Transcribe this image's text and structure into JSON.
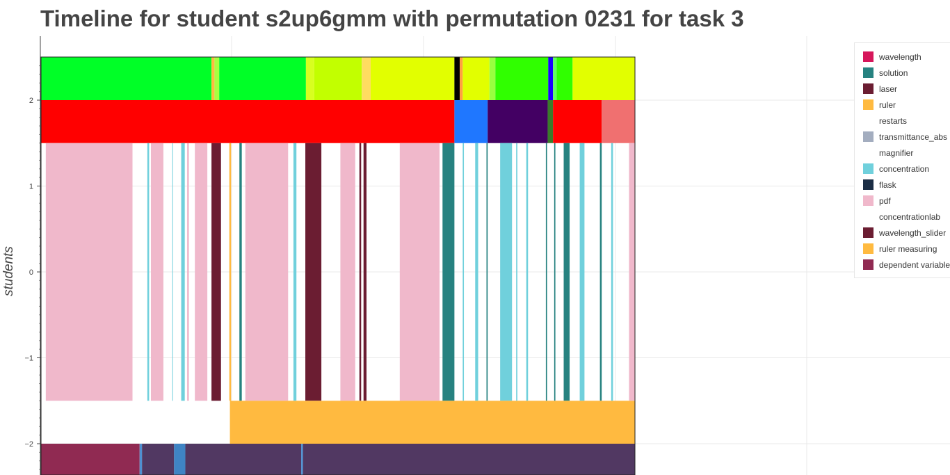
{
  "title": "Timeline for student s2up6gmm with permutation 0231 for task 3",
  "chart_data": {
    "type": "timeline",
    "title": "Timeline for student s2up6gmm with permutation 0231 for task 3",
    "ylabel": "students",
    "xlabel": "",
    "ylim": [
      -2.35,
      2.5
    ],
    "yticks": [
      -2,
      -1,
      0,
      1,
      2
    ],
    "ytick_labels": [
      "−2",
      "−1",
      "0",
      "1",
      "2"
    ],
    "xlim": [
      0,
      1000
    ],
    "grid": true,
    "legend_position": "top-right",
    "legend": [
      {
        "label": "wavelength",
        "color": "#d6175b"
      },
      {
        "label": "solution",
        "color": "#268280"
      },
      {
        "label": "laser",
        "color": "#6b1d32"
      },
      {
        "label": "ruler",
        "color": "#ffba40"
      },
      {
        "label": "restarts",
        "color": "#ffffff"
      },
      {
        "label": "transmittance_abs",
        "color": "#a3adbf"
      },
      {
        "label": "magnifier",
        "color": "#ffffff"
      },
      {
        "label": "concentration",
        "color": "#70d0dc"
      },
      {
        "label": "flask",
        "color": "#1b2d45"
      },
      {
        "label": "pdf",
        "color": "#f0b8cb"
      },
      {
        "label": "concentrationlab",
        "color": "#ffffff"
      },
      {
        "label": "wavelength_slider",
        "color": "#6b1d32"
      },
      {
        "label": "ruler measuring",
        "color": "#ffba40"
      },
      {
        "label": "dependent variable",
        "color": "#902a52"
      }
    ],
    "rows": [
      {
        "y0": 2,
        "y1": 2.5,
        "segments": [
          {
            "start": 0,
            "end": 287,
            "color": "#00ff27"
          },
          {
            "start": 287,
            "end": 292,
            "color": "#ffba40"
          },
          {
            "start": 292,
            "end": 300,
            "color": "#a8ff40"
          },
          {
            "start": 300,
            "end": 446,
            "color": "#00ff27"
          },
          {
            "start": 446,
            "end": 460,
            "color": "#d8ff20"
          },
          {
            "start": 460,
            "end": 540,
            "color": "#c2ff00"
          },
          {
            "start": 540,
            "end": 555,
            "color": "#ffdc60"
          },
          {
            "start": 555,
            "end": 696,
            "color": "#e2ff00"
          },
          {
            "start": 696,
            "end": 705,
            "color": "#000000"
          },
          {
            "start": 705,
            "end": 710,
            "color": "#ffa040"
          },
          {
            "start": 710,
            "end": 755,
            "color": "#e2ff00"
          },
          {
            "start": 755,
            "end": 765,
            "color": "#98ff40"
          },
          {
            "start": 765,
            "end": 854,
            "color": "#30ff00"
          },
          {
            "start": 854,
            "end": 862,
            "color": "#1a00ff"
          },
          {
            "start": 862,
            "end": 868,
            "color": "#60ff60"
          },
          {
            "start": 868,
            "end": 895,
            "color": "#30ff00"
          },
          {
            "start": 895,
            "end": 1000,
            "color": "#e2ff00"
          }
        ]
      },
      {
        "y0": 1.5,
        "y1": 2,
        "segments": [
          {
            "start": 0,
            "end": 696,
            "color": "#ff0000"
          },
          {
            "start": 696,
            "end": 752,
            "color": "#1f77ff"
          },
          {
            "start": 752,
            "end": 853,
            "color": "#430063"
          },
          {
            "start": 853,
            "end": 862,
            "color": "#3a7a2a"
          },
          {
            "start": 862,
            "end": 944,
            "color": "#ff0000"
          },
          {
            "start": 944,
            "end": 1000,
            "color": "#f07070"
          }
        ]
      },
      {
        "y0": -1.5,
        "y1": 1.5,
        "segments": [
          {
            "start": 8,
            "end": 154,
            "color": "#f0b8cb"
          },
          {
            "start": 179,
            "end": 182,
            "color": "#70d0dc"
          },
          {
            "start": 185,
            "end": 206,
            "color": "#f0b8cb"
          },
          {
            "start": 221,
            "end": 222,
            "color": "#70d0dc"
          },
          {
            "start": 236,
            "end": 242,
            "color": "#70d0dc"
          },
          {
            "start": 246,
            "end": 249,
            "color": "#f0b8cb"
          },
          {
            "start": 259,
            "end": 280,
            "color": "#f0b8cb"
          },
          {
            "start": 287,
            "end": 303,
            "color": "#6b1d32"
          },
          {
            "start": 317,
            "end": 320,
            "color": "#ffba40"
          },
          {
            "start": 334,
            "end": 338,
            "color": "#268280"
          },
          {
            "start": 344,
            "end": 416,
            "color": "#f0b8cb"
          },
          {
            "start": 425,
            "end": 430,
            "color": "#70d0dc"
          },
          {
            "start": 445,
            "end": 472,
            "color": "#6b1d32"
          },
          {
            "start": 504,
            "end": 529,
            "color": "#f0b8cb"
          },
          {
            "start": 536,
            "end": 539,
            "color": "#6b1d32"
          },
          {
            "start": 543,
            "end": 548,
            "color": "#6b1d32"
          },
          {
            "start": 604,
            "end": 671,
            "color": "#f0b8cb"
          },
          {
            "start": 676,
            "end": 696,
            "color": "#268280"
          },
          {
            "start": 710,
            "end": 712,
            "color": "#70d0dc"
          },
          {
            "start": 731,
            "end": 736,
            "color": "#70d0dc"
          },
          {
            "start": 750,
            "end": 752,
            "color": "#268280"
          },
          {
            "start": 773,
            "end": 793,
            "color": "#70d0dc"
          },
          {
            "start": 800,
            "end": 802,
            "color": "#70d0dc"
          },
          {
            "start": 817,
            "end": 820,
            "color": "#70d0dc"
          },
          {
            "start": 850,
            "end": 852,
            "color": "#268280"
          },
          {
            "start": 864,
            "end": 866,
            "color": "#268280"
          },
          {
            "start": 880,
            "end": 890,
            "color": "#268280"
          },
          {
            "start": 907,
            "end": 915,
            "color": "#70d0dc"
          },
          {
            "start": 941,
            "end": 944,
            "color": "#268280"
          },
          {
            "start": 960,
            "end": 963,
            "color": "#70d0dc"
          },
          {
            "start": 990,
            "end": 1000,
            "color": "#f0b8cb"
          }
        ]
      },
      {
        "y0": -2,
        "y1": -1.5,
        "segments": [
          {
            "start": 318,
            "end": 1000,
            "color": "#ffba40"
          }
        ]
      },
      {
        "y0": -2.5,
        "y1": -2,
        "segments": [
          {
            "start": 0,
            "end": 166,
            "color": "#902a52"
          },
          {
            "start": 166,
            "end": 170,
            "color": "#4f8fd0"
          },
          {
            "start": 170,
            "end": 224,
            "color": "#513862"
          },
          {
            "start": 224,
            "end": 243,
            "color": "#3f84c4"
          },
          {
            "start": 243,
            "end": 438,
            "color": "#513862"
          },
          {
            "start": 438,
            "end": 441,
            "color": "#4f8fd0"
          },
          {
            "start": 441,
            "end": 1000,
            "color": "#513862"
          }
        ]
      }
    ]
  }
}
